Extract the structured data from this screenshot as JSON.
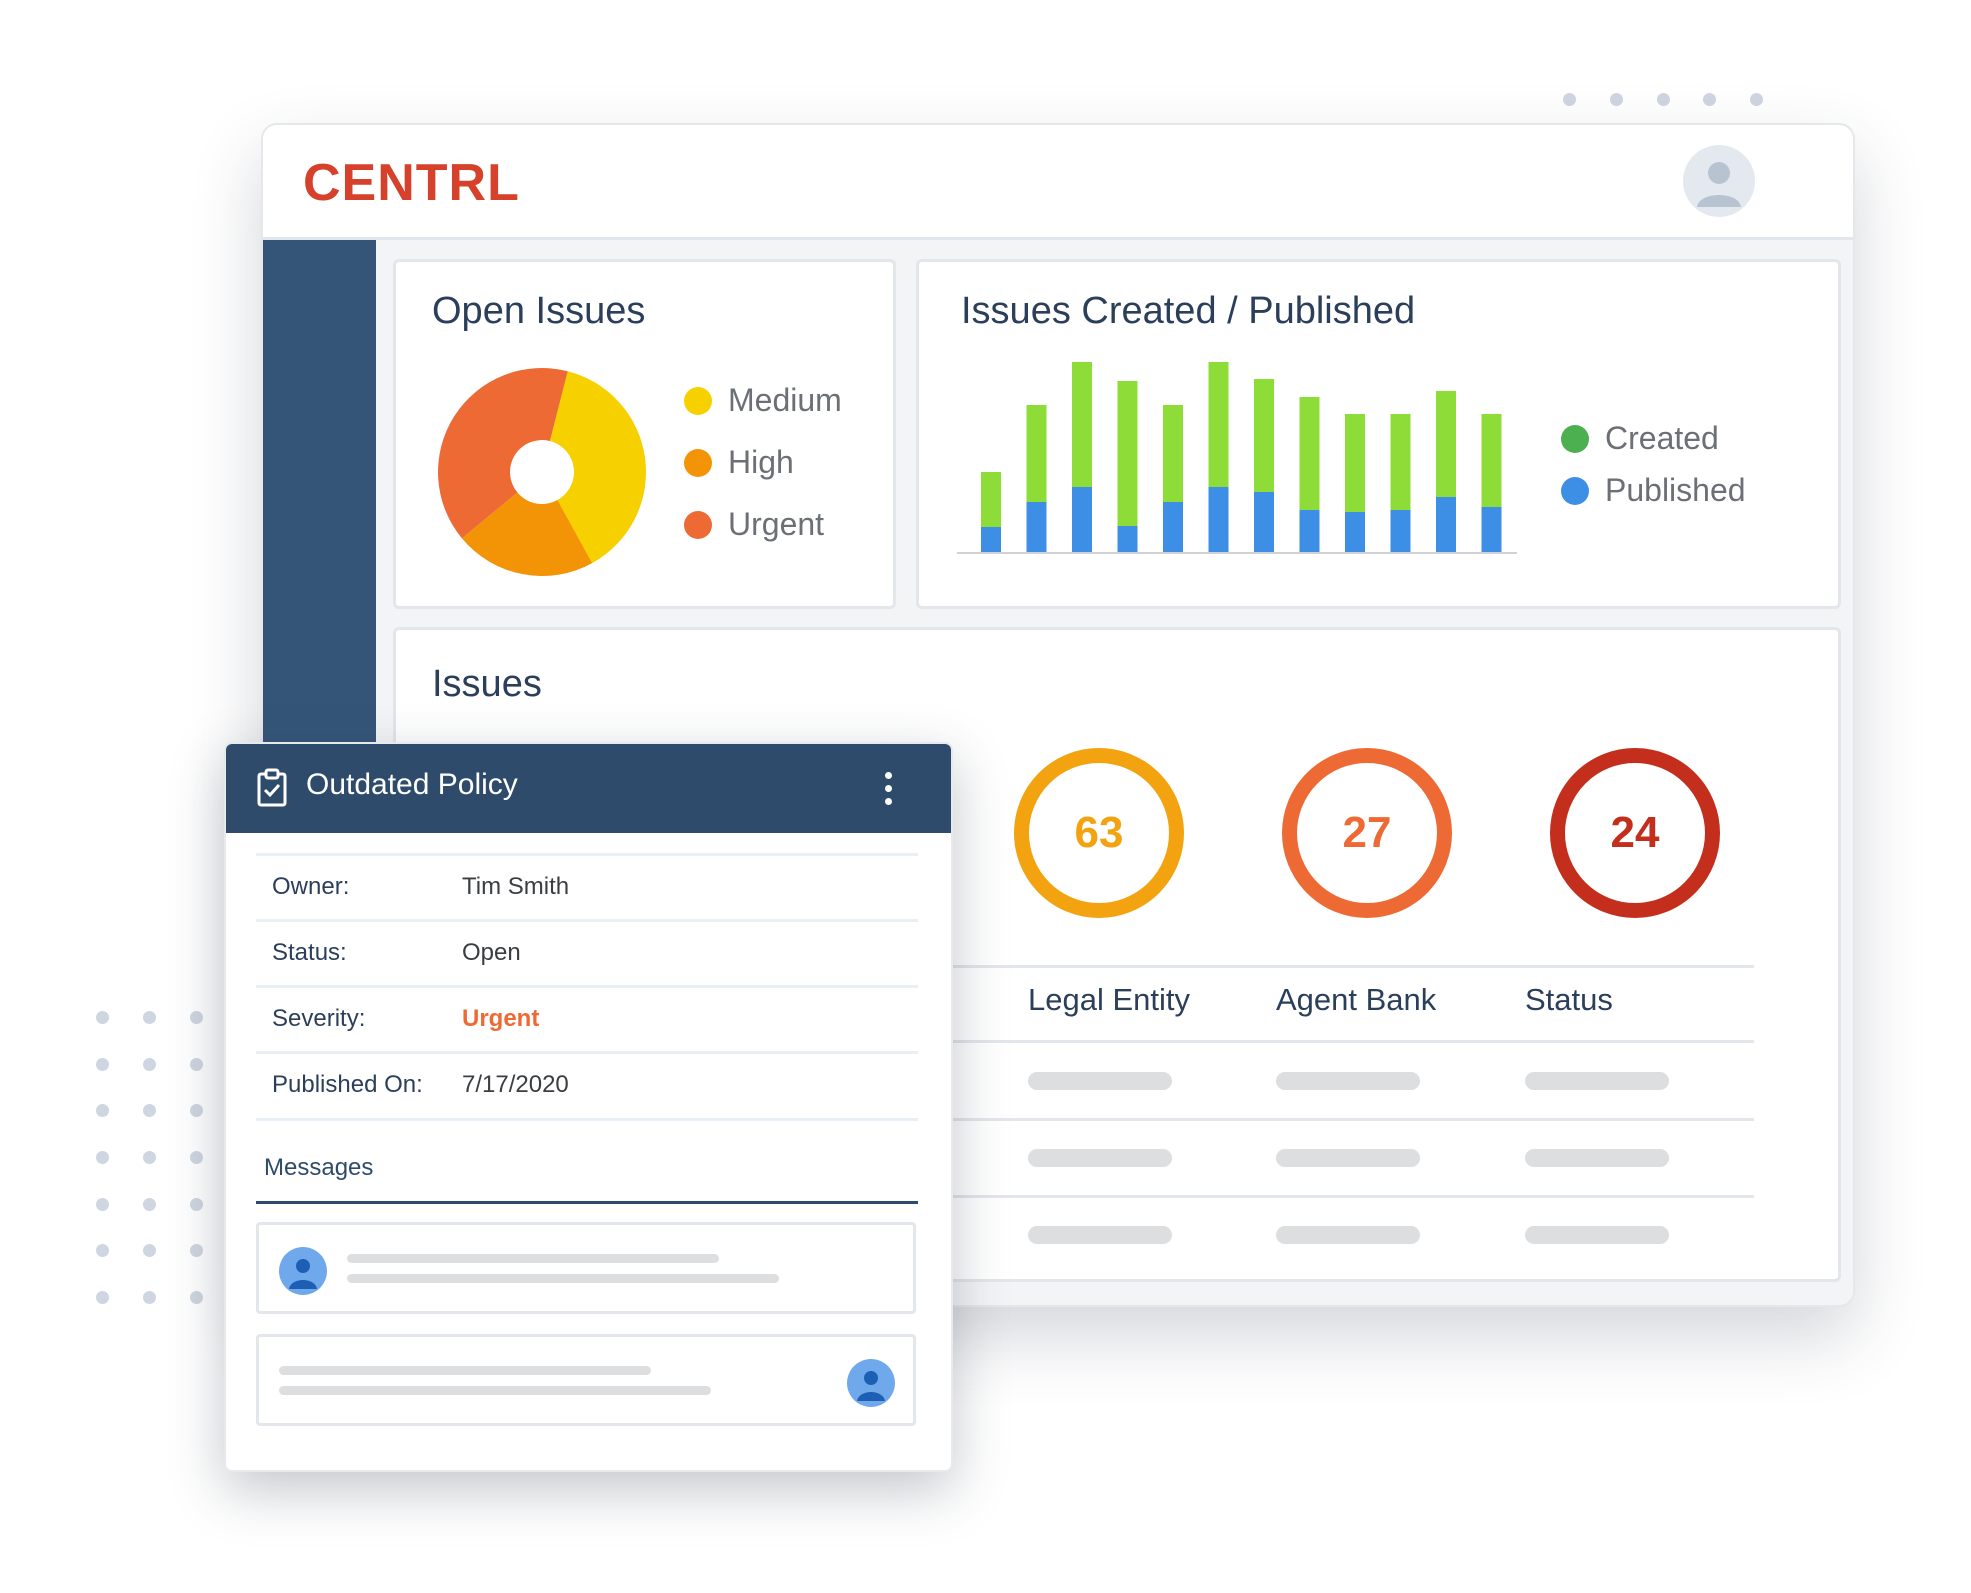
{
  "app": {
    "logo_text": "CENTRL",
    "brand_color": "#d6412b",
    "sidebar_color": "#355578",
    "avatar_icon": "user-avatar-icon"
  },
  "open_issues": {
    "title": "Open Issues",
    "legend": [
      {
        "label": "Medium",
        "color": "#f7d000"
      },
      {
        "label": "High",
        "color": "#f39406"
      },
      {
        "label": "Urgent",
        "color": "#ee6a35"
      }
    ],
    "chart_data": {
      "type": "pie",
      "title": "Open Issues",
      "categories": [
        "Medium",
        "High",
        "Urgent"
      ],
      "values": [
        38,
        22,
        40
      ],
      "colors": [
        "#f7d000",
        "#f39406",
        "#ee6a35"
      ],
      "donut": true
    }
  },
  "issues_created_published": {
    "title": "Issues Created / Published",
    "legend": [
      {
        "label": "Created",
        "color": "#4caf50"
      },
      {
        "label": "Published",
        "color": "#3d8fe5"
      }
    ],
    "chart_data": {
      "type": "bar",
      "stacked": true,
      "title": "Issues Created / Published",
      "categories": [
        "",
        "",
        "",
        "",
        "",
        "",
        "",
        "",
        "",
        "",
        "",
        ""
      ],
      "ylim": [
        0,
        190
      ],
      "series": [
        {
          "name": "Published",
          "color": "#3d8fe5",
          "values": [
            25,
            50,
            65,
            26,
            50,
            65,
            60,
            42,
            40,
            42,
            55,
            45
          ]
        },
        {
          "name": "Created",
          "color": "#8ddc37",
          "values": [
            55,
            97,
            125,
            145,
            97,
            125,
            113,
            113,
            98,
            96,
            106,
            93
          ]
        }
      ],
      "grid": false,
      "legend_position": "right"
    }
  },
  "issues": {
    "title": "Issues",
    "counts": [
      {
        "value": "63",
        "color": "#f2a30f"
      },
      {
        "value": "27",
        "color": "#ee6a35"
      },
      {
        "value": "24",
        "color": "#c42e1c"
      }
    ],
    "columns": [
      "Legal Entity",
      "Agent Bank",
      "Status"
    ]
  },
  "popup": {
    "title": "Outdated Policy",
    "title_icon": "clipboard-check-icon",
    "menu_icon": "more-vertical-icon",
    "fields": [
      {
        "label": "Owner:",
        "value": "Tim Smith"
      },
      {
        "label": "Status:",
        "value": "Open"
      },
      {
        "label": "Severity:",
        "value": "Urgent",
        "color": "#ee6a35"
      },
      {
        "label": "Published On:",
        "value": "7/17/2020"
      }
    ],
    "messages_label": "Messages"
  }
}
